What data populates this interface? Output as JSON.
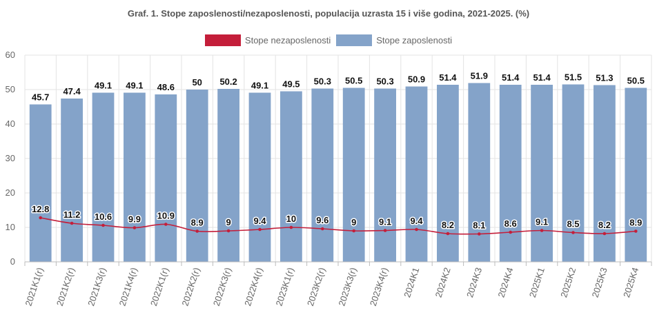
{
  "colors": {
    "employment": "#84a3c9",
    "unemployment": "#c41e3a",
    "grid": "#e3e3e3",
    "axis": "#bbbbbb",
    "text": "#666666",
    "label": "#111111"
  },
  "chart_data": {
    "type": "bar",
    "title": "Graf. 1. Stope zaposlenosti/nezaposlenosti, populacija uzrasta 15 i više godina, 2021-2025. (%)",
    "categories": [
      "2021K1(r)",
      "2021K2(r)",
      "2021K3(r)",
      "2021K4(r)",
      "2022K1(r)",
      "2022K2(r)",
      "2022K3(r)",
      "2022K4(r)",
      "2023K1(r)",
      "2023K2(r)",
      "2023K3(r)",
      "2023K4(r)",
      "2024K1",
      "2024K2",
      "2024K3",
      "2024K4",
      "2025K1",
      "2025K2",
      "2025K3",
      "2025K4"
    ],
    "series": [
      {
        "name": "Stope nezaposlenosti",
        "type": "line",
        "values": [
          12.8,
          11.2,
          10.6,
          9.9,
          10.9,
          8.9,
          9,
          9.4,
          10,
          9.6,
          9,
          9.1,
          9.4,
          8.2,
          8.1,
          8.6,
          9.1,
          8.5,
          8.2,
          8.9
        ]
      },
      {
        "name": "Stope zaposlenosti",
        "type": "bar",
        "values": [
          45.7,
          47.4,
          49.1,
          49.1,
          48.6,
          50,
          50.2,
          49.1,
          49.5,
          50.3,
          50.5,
          50.3,
          50.9,
          51.4,
          51.9,
          51.4,
          51.4,
          51.5,
          51.3,
          50.5
        ]
      }
    ],
    "ylim": [
      0,
      60
    ],
    "yticks": [
      0,
      10,
      20,
      30,
      40,
      50,
      60
    ],
    "grid": true,
    "legend_position": "top-center",
    "xlabel": "",
    "ylabel": ""
  }
}
